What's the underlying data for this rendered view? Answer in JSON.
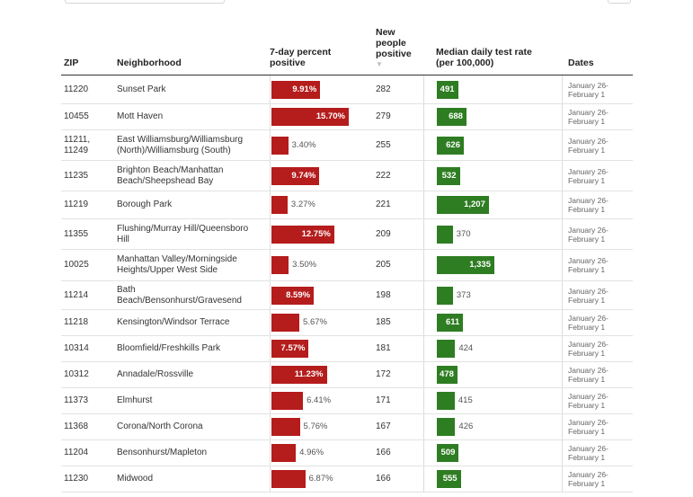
{
  "headers": {
    "zip": "ZIP",
    "neighborhood": "Neighborhood",
    "pct_line1": "7-day percent",
    "pct_line2": "positive",
    "new_line1": "New",
    "new_line2": "people",
    "new_line3": "positive",
    "sort_icon": "▼",
    "rate_line1": "Median daily test rate",
    "rate_line2": "(per 100,000)",
    "dates": "Dates"
  },
  "colors": {
    "positive_bar": "#b51c1c",
    "rate_bar": "#2e7d22"
  },
  "scale": {
    "pct_max": 15.7,
    "rate_max": 1335
  },
  "rows": [
    {
      "zip": "11220",
      "name": "Sunset Park",
      "pct": 9.91,
      "pct_label": "9.91%",
      "new": "282",
      "rate": 491,
      "rate_label": "491",
      "dates1": "January 26-",
      "dates2": "February 1"
    },
    {
      "zip": "10455",
      "name": "Mott Haven",
      "pct": 15.7,
      "pct_label": "15.70%",
      "new": "279",
      "rate": 688,
      "rate_label": "688",
      "dates1": "January 26-",
      "dates2": "February 1"
    },
    {
      "zip": "11211, 11249",
      "name": "East Williamsburg/Williamsburg (North)/Williamsburg (South)",
      "pct": 3.4,
      "pct_label": "3.40%",
      "new": "255",
      "rate": 626,
      "rate_label": "626",
      "dates1": "January 26-",
      "dates2": "February 1"
    },
    {
      "zip": "11235",
      "name": "Brighton Beach/Manhattan Beach/Sheepshead Bay",
      "pct": 9.74,
      "pct_label": "9.74%",
      "new": "222",
      "rate": 532,
      "rate_label": "532",
      "dates1": "January 26-",
      "dates2": "February 1"
    },
    {
      "zip": "11219",
      "name": "Borough Park",
      "pct": 3.27,
      "pct_label": "3.27%",
      "new": "221",
      "rate": 1207,
      "rate_label": "1,207",
      "dates1": "January 26-",
      "dates2": "February 1"
    },
    {
      "zip": "11355",
      "name": "Flushing/Murray Hill/Queensboro Hill",
      "pct": 12.75,
      "pct_label": "12.75%",
      "new": "209",
      "rate": 370,
      "rate_label": "370",
      "dates1": "January 26-",
      "dates2": "February 1"
    },
    {
      "zip": "10025",
      "name": "Manhattan Valley/Morningside Heights/Upper West Side",
      "pct": 3.5,
      "pct_label": "3.50%",
      "new": "205",
      "rate": 1335,
      "rate_label": "1,335",
      "dates1": "January 26-",
      "dates2": "February 1"
    },
    {
      "zip": "11214",
      "name": "Bath Beach/Bensonhurst/Gravesend",
      "pct": 8.59,
      "pct_label": "8.59%",
      "new": "198",
      "rate": 373,
      "rate_label": "373",
      "dates1": "January 26-",
      "dates2": "February 1"
    },
    {
      "zip": "11218",
      "name": "Kensington/Windsor Terrace",
      "pct": 5.67,
      "pct_label": "5.67%",
      "new": "185",
      "rate": 611,
      "rate_label": "611",
      "dates1": "January 26-",
      "dates2": "February 1"
    },
    {
      "zip": "10314",
      "name": "Bloomfield/Freshkills Park",
      "pct": 7.57,
      "pct_label": "7.57%",
      "new": "181",
      "rate": 424,
      "rate_label": "424",
      "dates1": "January 26-",
      "dates2": "February 1"
    },
    {
      "zip": "10312",
      "name": "Annadale/Rossville",
      "pct": 11.23,
      "pct_label": "11.23%",
      "new": "172",
      "rate": 478,
      "rate_label": "478",
      "dates1": "January 26-",
      "dates2": "February 1"
    },
    {
      "zip": "11373",
      "name": "Elmhurst",
      "pct": 6.41,
      "pct_label": "6.41%",
      "new": "171",
      "rate": 415,
      "rate_label": "415",
      "dates1": "January 26-",
      "dates2": "February 1"
    },
    {
      "zip": "11368",
      "name": "Corona/North Corona",
      "pct": 5.76,
      "pct_label": "5.76%",
      "new": "167",
      "rate": 426,
      "rate_label": "426",
      "dates1": "January 26-",
      "dates2": "February 1"
    },
    {
      "zip": "11204",
      "name": "Bensonhurst/Mapleton",
      "pct": 4.96,
      "pct_label": "4.96%",
      "new": "166",
      "rate": 509,
      "rate_label": "509",
      "dates1": "January 26-",
      "dates2": "February 1"
    },
    {
      "zip": "11230",
      "name": "Midwood",
      "pct": 6.87,
      "pct_label": "6.87%",
      "new": "166",
      "rate": 555,
      "rate_label": "555",
      "dates1": "January 26-",
      "dates2": "February 1"
    }
  ]
}
